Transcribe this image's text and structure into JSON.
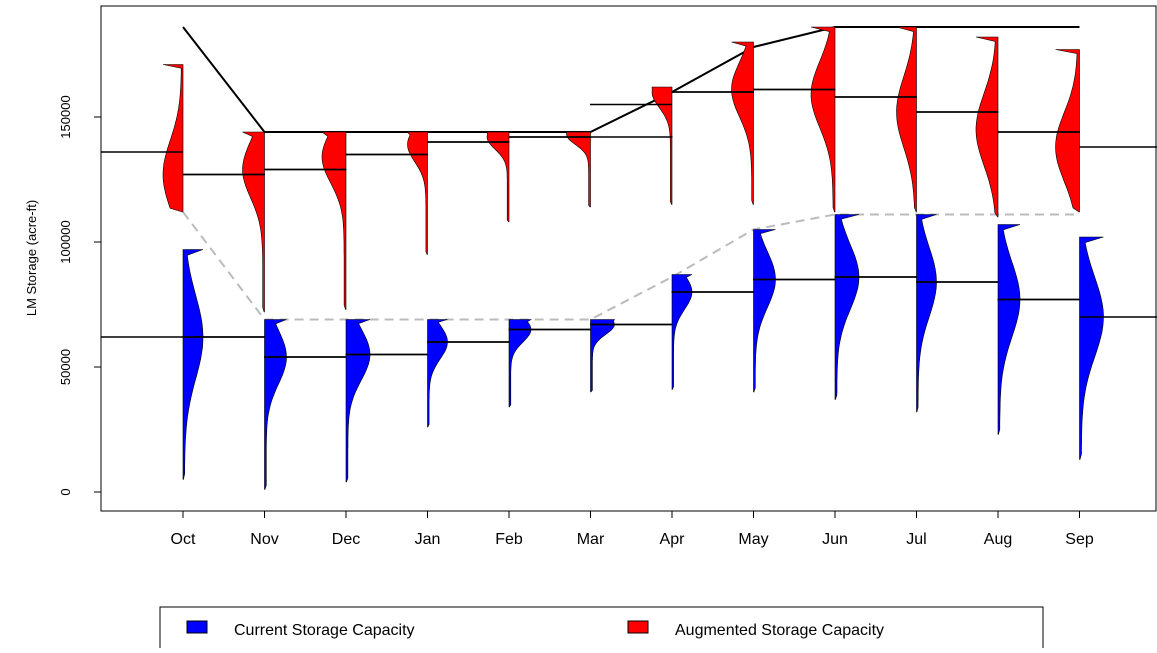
{
  "chart_data": {
    "type": "violin",
    "ylabel": "LM Storage (acre-ft)",
    "xlabel": "",
    "title": "",
    "categories": [
      "Oct",
      "Nov",
      "Dec",
      "Jan",
      "Feb",
      "Mar",
      "Apr",
      "May",
      "Jun",
      "Jul",
      "Aug",
      "Sep"
    ],
    "yticks": [
      0,
      50000,
      100000,
      150000
    ],
    "ytick_labels": [
      "0",
      "50000",
      "100000",
      "150000"
    ],
    "ylim": [
      -5000,
      195000
    ],
    "legend": {
      "placement": "bottom",
      "items": [
        {
          "label": "Current Storage Capacity",
          "color": "#0000ff"
        },
        {
          "label": "Augmented Storage Capacity",
          "color": "#ff0000"
        }
      ]
    },
    "capacity_lines": {
      "augmented": {
        "color": "#000000",
        "style": "solid",
        "values": [
          186000,
          144000,
          144000,
          144000,
          144000,
          144000,
          160000,
          178000,
          186000,
          186000,
          186000,
          186000
        ]
      },
      "current": {
        "color": "#bbbbbb",
        "style": "dashed",
        "values": [
          112000,
          69000,
          69000,
          69000,
          69000,
          69000,
          86000,
          105000,
          111000,
          111000,
          111000,
          111000
        ]
      }
    },
    "series": [
      {
        "name": "Augmented Storage Capacity",
        "color": "#ff0000",
        "side": "left",
        "min": [
          112000,
          72000,
          73000,
          95000,
          108000,
          114000,
          115000,
          115000,
          112000,
          112000,
          110000,
          112000
        ],
        "max": [
          171000,
          144000,
          144000,
          144000,
          144000,
          144000,
          162000,
          180000,
          186000,
          186000,
          182000,
          177000
        ],
        "median": [
          127000,
          129000,
          134000,
          139000,
          142000,
          143000,
          160000,
          161000,
          159000,
          152000,
          145000,
          138000
        ],
        "median_left": [
          136000,
          127000,
          129000,
          135000,
          140000,
          142000,
          155000,
          160000,
          161000,
          158000,
          152000,
          144000
        ],
        "median_right": [
          127000,
          129000,
          135000,
          140000,
          142000,
          142000,
          160000,
          161000,
          158000,
          152000,
          144000,
          138000
        ]
      },
      {
        "name": "Current Storage Capacity",
        "color": "#0000ff",
        "side": "right",
        "min": [
          5000,
          1000,
          4000,
          26000,
          34000,
          40000,
          41000,
          40000,
          37000,
          32000,
          23000,
          13000
        ],
        "max": [
          97000,
          69000,
          69000,
          69000,
          69000,
          69000,
          87000,
          105000,
          111000,
          111000,
          107000,
          102000
        ],
        "median": [
          62000,
          54000,
          55000,
          60000,
          65000,
          67000,
          80000,
          85000,
          86000,
          84000,
          77000,
          70000
        ],
        "median_left": [
          62000,
          62000,
          54000,
          55000,
          60000,
          65000,
          67000,
          80000,
          85000,
          86000,
          84000,
          77000
        ],
        "median_right": [
          62000,
          54000,
          55000,
          60000,
          65000,
          67000,
          80000,
          85000,
          86000,
          84000,
          77000,
          70000
        ]
      }
    ]
  }
}
